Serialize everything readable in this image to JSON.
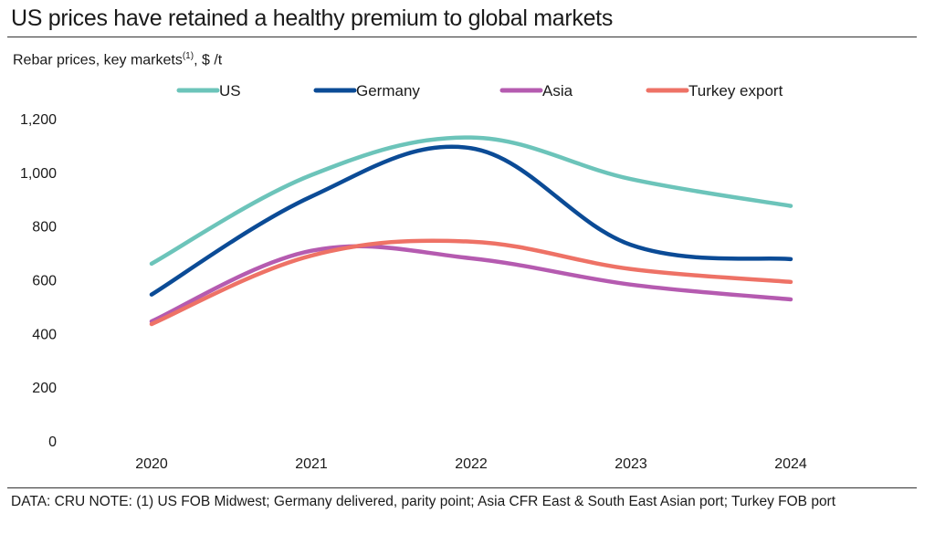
{
  "header": {
    "title": "US prices have retained a healthy premium to global markets",
    "subtitle_main": "Rebar prices, key markets",
    "subtitle_sup": "(1)",
    "subtitle_unit": ", $ /t"
  },
  "footnote": "DATA: CRU NOTE: (1) US FOB Midwest; Germany delivered, parity point; Asia CFR East & South East Asian port; Turkey FOB port",
  "chart_data": {
    "type": "line",
    "title": "US prices have retained a healthy premium to global markets",
    "subtitle": "Rebar prices, key markets(1), $ /t",
    "xlabel": "",
    "ylabel": "$ /t",
    "x": [
      "2020",
      "2021",
      "2022",
      "2023",
      "2024"
    ],
    "ylim": [
      0,
      1200
    ],
    "yticks": [
      0,
      200,
      400,
      600,
      800,
      1000,
      1200
    ],
    "ytick_labels": [
      "0",
      "200",
      "400",
      "600",
      "800",
      "1,000",
      "1,200"
    ],
    "grid": false,
    "legend_position": "top-center",
    "smooth": true,
    "series": [
      {
        "name": "US",
        "color": "#6cc4ba",
        "values": [
          660,
          990,
          1130,
          975,
          875
        ]
      },
      {
        "name": "Germany",
        "color": "#0b4b96",
        "values": [
          545,
          910,
          1090,
          730,
          677
        ]
      },
      {
        "name": "Asia",
        "color": "#b55bb0",
        "values": [
          445,
          708,
          680,
          582,
          527
        ]
      },
      {
        "name": "Turkey export",
        "color": "#ee7266",
        "values": [
          435,
          690,
          742,
          640,
          592
        ]
      }
    ]
  }
}
